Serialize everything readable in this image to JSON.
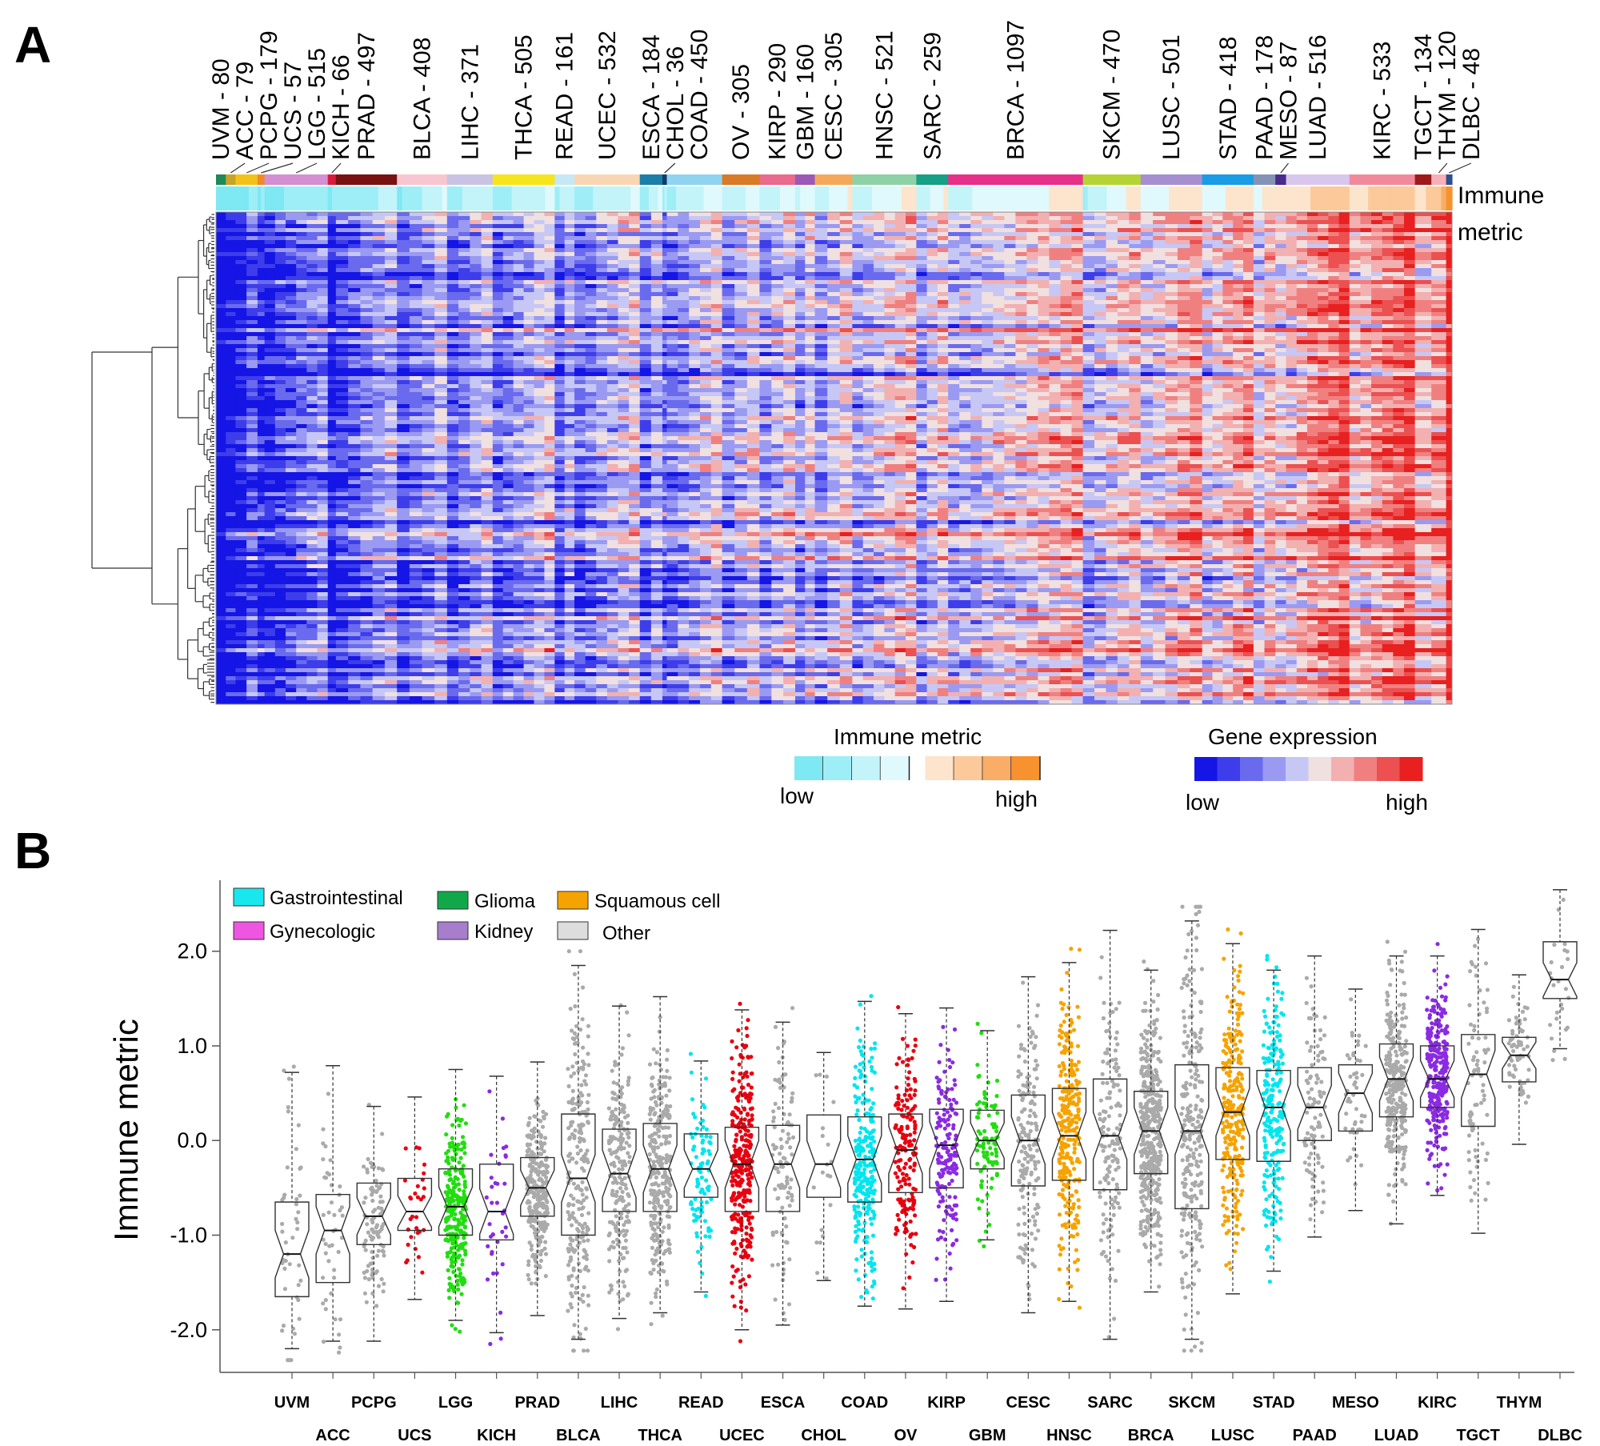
{
  "panel_a": {
    "letter": "A",
    "annotation_track_label": [
      "Immune",
      "metric"
    ],
    "cancers": [
      {
        "code": "UVM",
        "n": 80,
        "label": "UVM - 80",
        "color": "#1d8a57"
      },
      {
        "code": "ACC",
        "n": 79,
        "label": "ACC - 79",
        "color": "#c9a227"
      },
      {
        "code": "PCPG",
        "n": 179,
        "label": "PCPG - 179",
        "color": "#f2c21a"
      },
      {
        "code": "UCS",
        "n": 57,
        "label": "UCS - 57",
        "color": "#f08a24"
      },
      {
        "code": "LGG",
        "n": 515,
        "label": "LGG - 515",
        "color": "#d48fd0"
      },
      {
        "code": "KICH",
        "n": 66,
        "label": "KICH - 66",
        "color": "#d81b3b"
      },
      {
        "code": "PRAD",
        "n": 497,
        "label": "PRAD - 497",
        "color": "#7a1111"
      },
      {
        "code": "BLCA",
        "n": 408,
        "label": "BLCA - 408",
        "color": "#f7c6d0"
      },
      {
        "code": "LIHC",
        "n": 371,
        "label": "LIHC - 371",
        "color": "#c8c3e3"
      },
      {
        "code": "THCA",
        "n": 505,
        "label": "THCA - 505",
        "color": "#f5e51a"
      },
      {
        "code": "READ",
        "n": 161,
        "label": "READ - 161",
        "color": "#c4e8f4"
      },
      {
        "code": "UCEC",
        "n": 532,
        "label": "UCEC - 532",
        "color": "#f8d6b4"
      },
      {
        "code": "ESCA",
        "n": 184,
        "label": "ESCA - 184",
        "color": "#1b7ea8"
      },
      {
        "code": "CHOL",
        "n": 36,
        "label": "CHOL - 36",
        "color": "#0b3d66"
      },
      {
        "code": "COAD",
        "n": 450,
        "label": "COAD - 450",
        "color": "#8fd3f0"
      },
      {
        "code": "OV",
        "n": 305,
        "label": "OV - 305",
        "color": "#d97a26"
      },
      {
        "code": "KIRP",
        "n": 290,
        "label": "KIRP - 290",
        "color": "#e96a8d"
      },
      {
        "code": "GBM",
        "n": 160,
        "label": "GBM - 160",
        "color": "#9b59b6"
      },
      {
        "code": "CESC",
        "n": 305,
        "label": "CESC - 305",
        "color": "#f4a95a"
      },
      {
        "code": "HNSC",
        "n": 521,
        "label": "HNSC - 521",
        "color": "#8fd1a6"
      },
      {
        "code": "SARC",
        "n": 259,
        "label": "SARC - 259",
        "color": "#16a085"
      },
      {
        "code": "BRCA",
        "n": 1097,
        "label": "BRCA - 1097",
        "color": "#e6308a"
      },
      {
        "code": "SKCM",
        "n": 470,
        "label": "SKCM - 470",
        "color": "#b5d334"
      },
      {
        "code": "LUSC",
        "n": 501,
        "label": "LUSC - 501",
        "color": "#a68fd1"
      },
      {
        "code": "STAD",
        "n": 418,
        "label": "STAD - 418",
        "color": "#1a9be6"
      },
      {
        "code": "PAAD",
        "n": 178,
        "label": "PAAD - 178",
        "color": "#8493b5"
      },
      {
        "code": "MESO",
        "n": 87,
        "label": "MESO - 87",
        "color": "#4a2a8c"
      },
      {
        "code": "LUAD",
        "n": 516,
        "label": "LUAD - 516",
        "color": "#d9c6ec"
      },
      {
        "code": "KIRC",
        "n": 533,
        "label": "KIRC - 533",
        "color": "#f08a9b"
      },
      {
        "code": "TGCT",
        "n": 134,
        "label": "TGCT - 134",
        "color": "#9e1a1a"
      },
      {
        "code": "THYM",
        "n": 120,
        "label": "THYM - 120",
        "color": "#f7b0b8"
      },
      {
        "code": "DLBC",
        "n": 48,
        "label": "DLBC - 48",
        "color": "#2e4f8f"
      }
    ],
    "immune_legend": {
      "title": "Immune metric",
      "low": "low",
      "high": "high",
      "colors": [
        "#7ee8f3",
        "#9eeef7",
        "#c2f4fa",
        "#e0f9fc",
        "#fde4cc",
        "#fbc99a",
        "#f9ad66",
        "#f7922f"
      ]
    },
    "expression_legend": {
      "title": "Gene expression",
      "low": "low",
      "high": "high",
      "colors": [
        "#1515e6",
        "#3d3deb",
        "#6a6aee",
        "#9a9af2",
        "#c7c7f5",
        "#f0e0e0",
        "#f3b0b0",
        "#f08080",
        "#ec5050",
        "#e82020"
      ]
    }
  },
  "panel_b": {
    "letter": "B",
    "legend": [
      {
        "label": "Gastrointestinal",
        "color": "#18e8ee"
      },
      {
        "label": "Glioma",
        "color": "#11a84a"
      },
      {
        "label": "Squamous cell",
        "color": "#f5a300"
      },
      {
        "label": "Gynecologic",
        "color": "#ee55e0"
      },
      {
        "label": "Kidney",
        "color": "#a77dcc"
      },
      {
        "label": "Other",
        "color": "#dddddd"
      }
    ]
  },
  "chart_data": {
    "type": "box",
    "ylabel": "Immune metric",
    "xlabel": "",
    "ylim": [
      -2.45,
      2.75
    ],
    "yticks": [
      "2.0",
      "1.0",
      "0.0",
      "-1.0",
      "-2.0"
    ],
    "ytick_values": [
      2.0,
      1.0,
      0.0,
      -1.0,
      -2.0
    ],
    "grid": false,
    "notched": true,
    "categories": [
      "UVM",
      "ACC",
      "PCPG",
      "UCS",
      "LGG",
      "KICH",
      "PRAD",
      "BLCA",
      "LIHC",
      "THCA",
      "READ",
      "UCEC",
      "ESCA",
      "CHOL",
      "COAD",
      "OV",
      "KIRP",
      "GBM",
      "CESC",
      "HNSC",
      "SARC",
      "BRCA",
      "SKCM",
      "LUSC",
      "STAD",
      "PAAD",
      "MESO",
      "LUAD",
      "KIRC",
      "TGCT",
      "THYM",
      "DLBC"
    ],
    "groups": [
      "Other",
      "Other",
      "Other",
      "Gynecologic",
      "Glioma",
      "Kidney",
      "Other",
      "Other",
      "Other",
      "Other",
      "Gastrointestinal",
      "Gynecologic",
      "Other",
      "Other",
      "Gastrointestinal",
      "Gynecologic",
      "Kidney",
      "Glioma",
      "Other",
      "Squamous cell",
      "Other",
      "Other",
      "Other",
      "Squamous cell",
      "Gastrointestinal",
      "Other",
      "Other",
      "Other",
      "Kidney",
      "Other",
      "Other",
      "Other"
    ],
    "boxes": [
      {
        "name": "UVM",
        "min": -2.2,
        "q1": -1.65,
        "median": -1.2,
        "q3": -0.65,
        "max": 0.72
      },
      {
        "name": "ACC",
        "min": -2.12,
        "q1": -1.5,
        "median": -0.95,
        "q3": -0.57,
        "max": 0.79
      },
      {
        "name": "PCPG",
        "min": -2.12,
        "q1": -1.1,
        "median": -0.8,
        "q3": -0.45,
        "max": 0.36
      },
      {
        "name": "UCS",
        "min": -1.68,
        "q1": -0.95,
        "median": -0.75,
        "q3": -0.4,
        "max": 0.46
      },
      {
        "name": "LGG",
        "min": -1.9,
        "q1": -1.0,
        "median": -0.7,
        "q3": -0.3,
        "max": 0.75
      },
      {
        "name": "KICH",
        "min": -2.03,
        "q1": -1.05,
        "median": -0.75,
        "q3": -0.25,
        "max": 0.68
      },
      {
        "name": "PRAD",
        "min": -1.85,
        "q1": -0.8,
        "median": -0.5,
        "q3": -0.18,
        "max": 0.83
      },
      {
        "name": "BLCA",
        "min": -2.1,
        "q1": -1.0,
        "median": -0.4,
        "q3": 0.28,
        "max": 1.85
      },
      {
        "name": "LIHC",
        "min": -1.88,
        "q1": -0.75,
        "median": -0.35,
        "q3": 0.12,
        "max": 1.42
      },
      {
        "name": "THCA",
        "min": -1.82,
        "q1": -0.75,
        "median": -0.3,
        "q3": 0.18,
        "max": 1.52
      },
      {
        "name": "READ",
        "min": -1.6,
        "q1": -0.6,
        "median": -0.3,
        "q3": 0.07,
        "max": 0.84
      },
      {
        "name": "UCEC",
        "min": -2.0,
        "q1": -0.75,
        "median": -0.25,
        "q3": 0.14,
        "max": 1.38
      },
      {
        "name": "ESCA",
        "min": -1.95,
        "q1": -0.75,
        "median": -0.25,
        "q3": 0.16,
        "max": 1.25
      },
      {
        "name": "CHOL",
        "min": -1.48,
        "q1": -0.6,
        "median": -0.25,
        "q3": 0.27,
        "max": 0.93
      },
      {
        "name": "COAD",
        "min": -1.75,
        "q1": -0.65,
        "median": -0.2,
        "q3": 0.25,
        "max": 1.47
      },
      {
        "name": "OV",
        "min": -1.78,
        "q1": -0.55,
        "median": -0.1,
        "q3": 0.28,
        "max": 1.34
      },
      {
        "name": "KIRP",
        "min": -1.7,
        "q1": -0.5,
        "median": -0.05,
        "q3": 0.33,
        "max": 1.4
      },
      {
        "name": "GBM",
        "min": -1.05,
        "q1": -0.3,
        "median": 0.0,
        "q3": 0.32,
        "max": 1.16
      },
      {
        "name": "CESC",
        "min": -1.82,
        "q1": -0.48,
        "median": 0.0,
        "q3": 0.48,
        "max": 1.73
      },
      {
        "name": "HNSC",
        "min": -1.7,
        "q1": -0.42,
        "median": 0.05,
        "q3": 0.55,
        "max": 1.88
      },
      {
        "name": "SARC",
        "min": -2.1,
        "q1": -0.52,
        "median": 0.05,
        "q3": 0.65,
        "max": 2.22
      },
      {
        "name": "BRCA",
        "min": -1.6,
        "q1": -0.35,
        "median": 0.1,
        "q3": 0.52,
        "max": 1.8
      },
      {
        "name": "SKCM",
        "min": -2.1,
        "q1": -0.72,
        "median": 0.1,
        "q3": 0.8,
        "max": 2.32
      },
      {
        "name": "LUSC",
        "min": -1.62,
        "q1": -0.2,
        "median": 0.3,
        "q3": 0.77,
        "max": 2.08
      },
      {
        "name": "STAD",
        "min": -1.38,
        "q1": -0.22,
        "median": 0.35,
        "q3": 0.74,
        "max": 1.8
      },
      {
        "name": "PAAD",
        "min": -1.02,
        "q1": 0.0,
        "median": 0.35,
        "q3": 0.77,
        "max": 1.95
      },
      {
        "name": "MESO",
        "min": -0.74,
        "q1": 0.1,
        "median": 0.5,
        "q3": 0.8,
        "max": 1.6
      },
      {
        "name": "LUAD",
        "min": -0.88,
        "q1": 0.25,
        "median": 0.65,
        "q3": 1.02,
        "max": 1.95
      },
      {
        "name": "KIRC",
        "min": -0.58,
        "q1": 0.35,
        "median": 0.65,
        "q3": 1.0,
        "max": 1.95
      },
      {
        "name": "TGCT",
        "min": -0.98,
        "q1": 0.15,
        "median": 0.7,
        "q3": 1.12,
        "max": 2.23
      },
      {
        "name": "THYM",
        "min": -0.04,
        "q1": 0.62,
        "median": 0.9,
        "q3": 1.09,
        "max": 1.75
      },
      {
        "name": "DLBC",
        "min": 0.97,
        "q1": 1.5,
        "median": 1.7,
        "q3": 2.1,
        "max": 2.65
      }
    ]
  }
}
